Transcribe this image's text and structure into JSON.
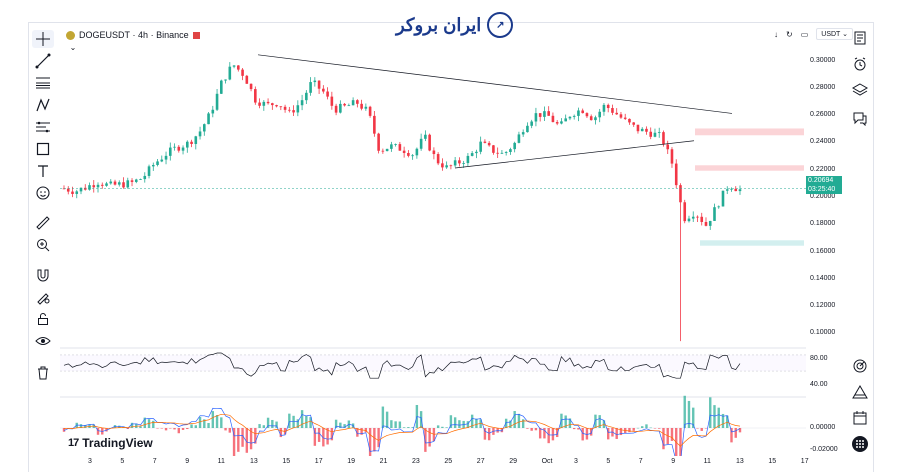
{
  "header": {
    "symbol": "DOGEUSDT",
    "interval": "4h",
    "exchange": "Binance",
    "separator": "·",
    "currency": "USDT",
    "hide_glyph": "⌄"
  },
  "branding": {
    "broker_name": "ایران بروکر",
    "platform": "TradingView",
    "platform_mark": "17"
  },
  "price_axis": {
    "labels": [
      "0.30000",
      "0.28000",
      "0.26000",
      "0.24000",
      "0.22000",
      "0.20000",
      "0.18000",
      "0.16000",
      "0.14000",
      "0.12000",
      "0.10000"
    ],
    "current_price": "0.20694",
    "countdown": "03:25:40"
  },
  "rsi_axis": {
    "labels": [
      "80.00",
      "40.00"
    ]
  },
  "macd_axis": {
    "labels": [
      "0.00000",
      "-0.02000"
    ]
  },
  "time_axis": {
    "labels": [
      "3",
      "5",
      "7",
      "9",
      "11",
      "13",
      "15",
      "17",
      "19",
      "21",
      "23",
      "25",
      "27",
      "29",
      "Oct",
      "3",
      "5",
      "7",
      "9",
      "11",
      "13",
      "15",
      "17"
    ]
  },
  "colors": {
    "up": "#22ab94",
    "down": "#f23645",
    "rsi_line": "#131722",
    "resistance_zone": "#fbd4d7",
    "support_zone": "#d3efef",
    "accent_brand": "#1b3a8c"
  },
  "icons": {
    "left_toolbar": [
      "crosshair-icon",
      "trend-line-icon",
      "fib-icon",
      "pattern-icon",
      "measure-icon",
      "rectangle-icon",
      "text-icon",
      "emoji-icon",
      "ruler-icon",
      "zoom-icon",
      "magnet-icon",
      "lock-draw-icon",
      "lock-icon",
      "eye-icon",
      "trash-icon"
    ],
    "right_toolbar": [
      "watchlist-icon",
      "alert-clock-icon",
      "layers-icon",
      "chat-icon",
      "target-icon",
      "triangle-icon",
      "calendar-icon",
      "apps-grid-icon"
    ]
  },
  "chart_data": {
    "type": "candlestick",
    "symbol": "DOGEUSDT",
    "ylim": [
      0.09,
      0.31
    ],
    "y_ticks": [
      0.3,
      0.28,
      0.26,
      0.24,
      0.22,
      0.2,
      0.18,
      0.16,
      0.14,
      0.12,
      0.1
    ],
    "path_close": [
      0.207,
      0.205,
      0.208,
      0.212,
      0.209,
      0.21,
      0.211,
      0.215,
      0.225,
      0.232,
      0.237,
      0.24,
      0.248,
      0.262,
      0.285,
      0.298,
      0.29,
      0.272,
      0.268,
      0.27,
      0.262,
      0.27,
      0.285,
      0.278,
      0.265,
      0.267,
      0.27,
      0.263,
      0.235,
      0.238,
      0.236,
      0.232,
      0.245,
      0.228,
      0.222,
      0.226,
      0.23,
      0.24,
      0.235,
      0.232,
      0.24,
      0.255,
      0.262,
      0.26,
      0.252,
      0.262,
      0.265,
      0.258,
      0.268,
      0.262,
      0.255,
      0.25,
      0.248,
      0.245,
      0.225,
      0.185,
      0.19,
      0.18,
      0.195,
      0.21,
      0.206
    ],
    "trendlines": [
      {
        "from": [
          0.305
        ],
        "to": [
          0.262
        ],
        "label": ""
      },
      {
        "from": [
          0.222
        ],
        "to": [
          0.242
        ],
        "label": ""
      }
    ],
    "zones": [
      {
        "low": 0.246,
        "high": 0.251,
        "kind": "resistance"
      },
      {
        "low": 0.22,
        "high": 0.224,
        "kind": "resistance"
      },
      {
        "low": 0.165,
        "high": 0.169,
        "kind": "support"
      }
    ],
    "low_wick": 0.095,
    "current_price": 0.20694,
    "rsi": {
      "levels": [
        80,
        40
      ]
    },
    "macd": {
      "zero": 0.0
    }
  }
}
